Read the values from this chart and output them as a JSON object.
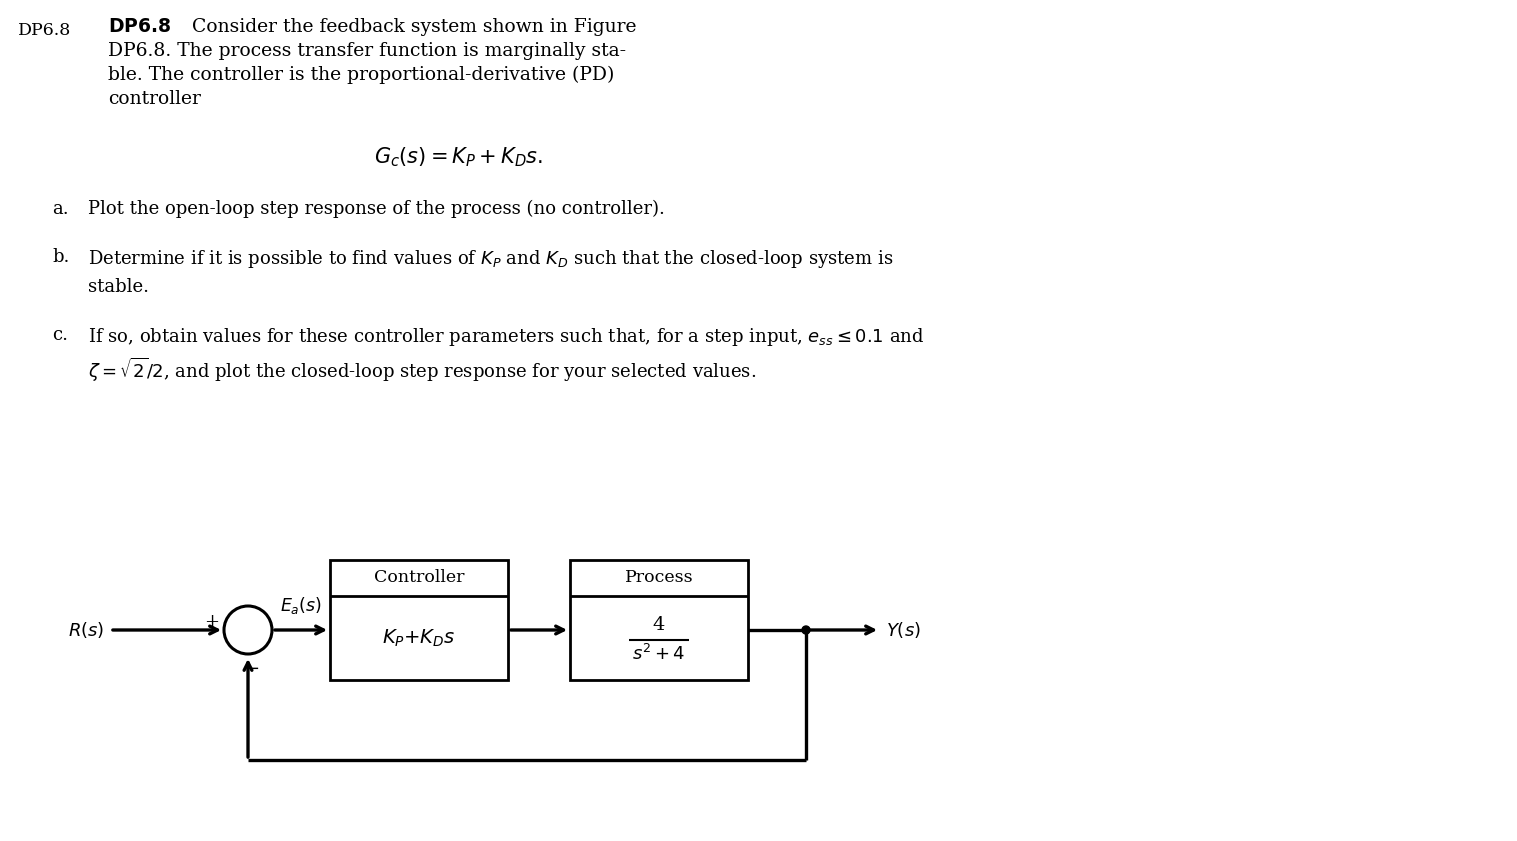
{
  "background_color": "#ffffff",
  "fig_width": 15.17,
  "fig_height": 8.41,
  "dpi": 100,
  "label_dp6_8_left": "DP6.8",
  "formula": "$G_c(s) = K_P + K_Ds.$",
  "item_a": "Plot the open-loop step response of the process (no controller).",
  "item_b_1": "Determine if it is possible to find values of $K_P$ and $K_D$ such that the closed-loop system is",
  "item_b_2": "stable.",
  "item_c_1": "If so, obtain values for these controller parameters such that, for a step input, $e_{ss} \\leq 0.1$ and",
  "item_c_2": "$\\zeta = \\sqrt{2}/2$, and plot the closed-loop step response for your selected values.",
  "diagram": {
    "Rs_label": "$R(s)$",
    "Ys_label": "$Y(s)$",
    "Eas_label": "$E_a(s)$",
    "plus_label": "+",
    "minus_label": "−",
    "controller_title": "Controller",
    "controller_formula": "$K_P{+}K_Ds$",
    "process_title": "Process",
    "process_num": "4",
    "process_den": "$s^2 + 4$"
  }
}
